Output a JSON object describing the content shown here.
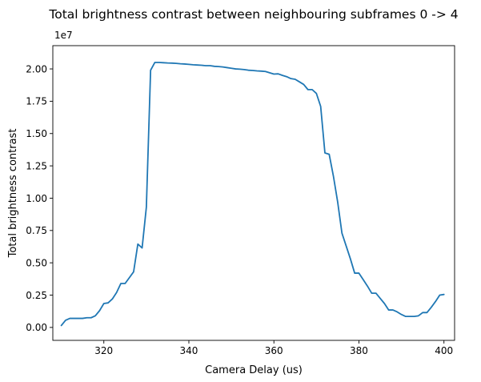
{
  "chart_data": {
    "type": "line",
    "title": "Total brightness contrast between neighbouring subframes 0 -> 4",
    "xlabel": "Camera Delay (us)",
    "ylabel": "Total brightness contrast",
    "y_offset_label": "1e7",
    "xlim": [
      308,
      402.5
    ],
    "ylim": [
      -0.1,
      2.18
    ],
    "x_ticks": [
      320,
      340,
      360,
      380,
      400
    ],
    "x_tick_labels": [
      "320",
      "340",
      "360",
      "380",
      "400"
    ],
    "y_ticks": [
      0.0,
      0.25,
      0.5,
      0.75,
      1.0,
      1.25,
      1.5,
      1.75,
      2.0
    ],
    "y_tick_labels": [
      "0.00",
      "0.25",
      "0.50",
      "0.75",
      "1.00",
      "1.25",
      "1.50",
      "1.75",
      "2.00"
    ],
    "grid": false,
    "series": [
      {
        "color": "#1f77b4",
        "x": [
          310,
          311,
          312,
          313,
          314,
          315,
          316,
          317,
          318,
          319,
          320,
          321,
          322,
          323,
          324,
          325,
          326,
          327,
          328,
          329,
          330,
          331,
          332,
          333,
          334,
          335,
          336,
          337,
          338,
          339,
          340,
          341,
          342,
          343,
          344,
          345,
          346,
          347,
          348,
          349,
          350,
          351,
          352,
          353,
          354,
          355,
          356,
          357,
          358,
          359,
          360,
          361,
          362,
          363,
          364,
          365,
          366,
          367,
          368,
          369,
          370,
          371,
          372,
          373,
          374,
          375,
          376,
          377,
          378,
          379,
          380,
          381,
          382,
          383,
          384,
          385,
          386,
          387,
          388,
          389,
          390,
          391,
          392,
          393,
          394,
          395,
          396,
          397,
          398,
          399,
          400
        ],
        "y": [
          0.015,
          0.055,
          0.07,
          0.07,
          0.07,
          0.07,
          0.075,
          0.075,
          0.09,
          0.13,
          0.185,
          0.19,
          0.22,
          0.27,
          0.34,
          0.34,
          0.385,
          0.43,
          0.645,
          0.615,
          0.93,
          1.99,
          2.05,
          2.05,
          2.048,
          2.046,
          2.045,
          2.043,
          2.04,
          2.038,
          2.035,
          2.032,
          2.03,
          2.028,
          2.025,
          2.025,
          2.02,
          2.018,
          2.015,
          2.01,
          2.005,
          2.0,
          1.998,
          1.995,
          1.99,
          1.988,
          1.985,
          1.983,
          1.98,
          1.97,
          1.96,
          1.962,
          1.95,
          1.94,
          1.925,
          1.92,
          1.9,
          1.88,
          1.84,
          1.84,
          1.81,
          1.71,
          1.35,
          1.34,
          1.17,
          0.97,
          0.73,
          0.63,
          0.53,
          0.42,
          0.42,
          0.37,
          0.32,
          0.265,
          0.265,
          0.225,
          0.185,
          0.135,
          0.135,
          0.12,
          0.1,
          0.085,
          0.085,
          0.085,
          0.09,
          0.115,
          0.115,
          0.155,
          0.2,
          0.25,
          0.255
        ]
      }
    ]
  }
}
